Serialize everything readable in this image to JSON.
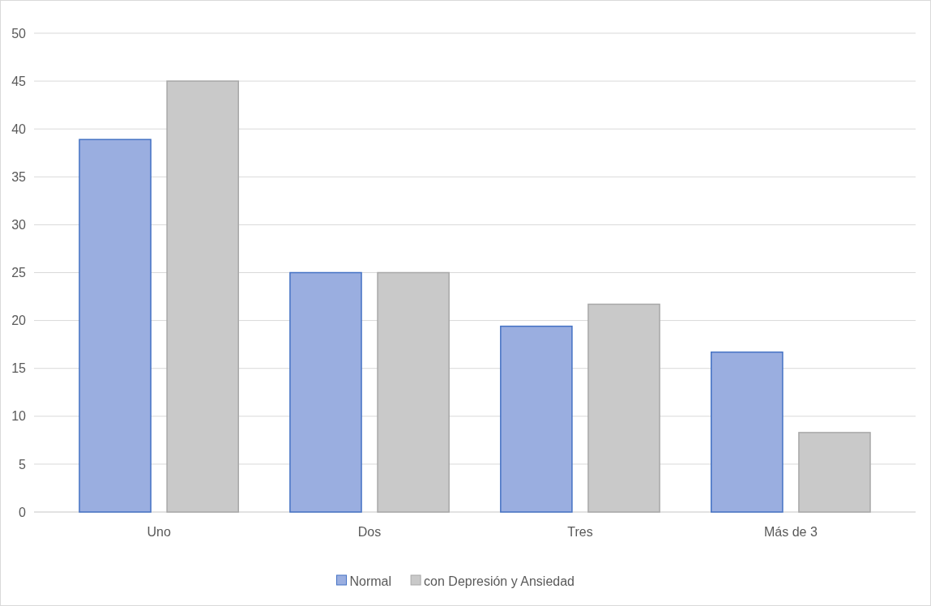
{
  "chart_data": {
    "type": "bar",
    "categories": [
      "Uno",
      "Dos",
      "Tres",
      "Más de 3"
    ],
    "series": [
      {
        "name": "Normal",
        "color": "#9aaee0",
        "values": [
          38.9,
          25,
          19.4,
          16.7
        ]
      },
      {
        "name": "con Depresión y Ansiedad",
        "color": "#c9c9c9",
        "values": [
          45,
          25,
          21.7,
          8.3
        ]
      }
    ],
    "ylim": [
      0,
      50
    ],
    "yticks": [
      0,
      5,
      10,
      15,
      20,
      25,
      30,
      35,
      40,
      45,
      50
    ],
    "grid": "y",
    "legend": "bottom"
  }
}
